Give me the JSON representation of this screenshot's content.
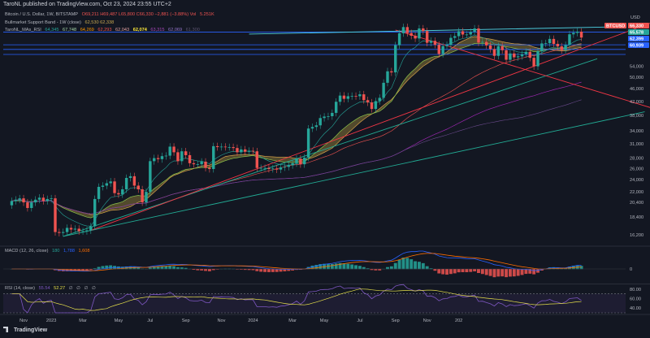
{
  "header": {
    "publisher_line": "TaroNL published on TradingView.com, Oct 23, 2024 23:55 UTC+2"
  },
  "legend": {
    "symbol_line": "Bitcoin / U.S. Dollar, 1W, BITSTAMP",
    "ohlc": "O69,211  H69,487  L65,800  C66,330  −2,881 (−3.88%)  Vol",
    "vol": "5.251K",
    "bmsb": "Bullmarket Support Band - 1W (close)",
    "bmsb_values": "62,530  62,338",
    "mas_label": "TaroNL_MAs_RSI",
    "mas_values": [
      "64,345",
      "67,748",
      "64,269",
      "62,293",
      "62,043",
      "62,074",
      "63,315",
      "62,069",
      "61,300"
    ],
    "macd_label": "MACD (12, 26, close)",
    "macd_values": [
      "180",
      "1,788",
      "1,608"
    ],
    "rsi_label": "RSI (14, close)",
    "rsi_values": [
      "55.54",
      "52.27",
      "∅",
      "∅",
      "∅",
      "∅"
    ]
  },
  "footer": {
    "brand": "TradingView"
  },
  "colors": {
    "background": "#131722",
    "up": "#26a69a",
    "down": "#ef5350",
    "band_fill": "#a08a3c",
    "macd_line": "#2962ff",
    "signal_line": "#ff6d00",
    "rsi_line": "#7e57c2",
    "rsi_ma": "#e6e04a",
    "support_line": "#2962ff",
    "trend_red": "#f23645",
    "trend_green": "#22ab94",
    "ma200": "#9c27b0"
  },
  "chart_data": [
    {
      "type": "candlestick",
      "title": "Bitcoin / U.S. Dollar, 1W, BITSTAMP",
      "yscale": "log",
      "ylim": [
        15000,
        80000
      ],
      "currency": "USD",
      "x_ticks": [
        "Nov",
        "2023",
        "Mar",
        "May",
        "Jul",
        "Sep",
        "Nov",
        "2024",
        "Mar",
        "May",
        "Jul",
        "Sep",
        "Nov",
        "202"
      ],
      "y_ticks": [
        16200,
        18400,
        20400,
        22000,
        24000,
        26000,
        28000,
        31000,
        34000,
        38000,
        42000,
        46000,
        50000,
        54000
      ],
      "last_price_label": "BTCUSD",
      "price_badges": [
        {
          "value": "66,330",
          "color": "#ef5350"
        },
        {
          "value": "65,578",
          "color": "#26a69a"
        },
        {
          "value": "62,399",
          "color": "#2962ff"
        },
        {
          "value": "60,939",
          "color": "#2962ff"
        }
      ],
      "horizontal_levels": [
        69000,
        63000,
        60939,
        58800
      ],
      "closes": [
        20600,
        20800,
        21000,
        20400,
        19600,
        20400,
        20800,
        21100,
        20600,
        20900,
        21000,
        16500,
        16400,
        16500,
        17000,
        16800,
        16900,
        16600,
        16600,
        16700,
        17200,
        20900,
        22800,
        23000,
        23400,
        23700,
        21800,
        21600,
        22400,
        24300,
        24600,
        23000,
        22400,
        20400,
        22000,
        27400,
        28000,
        27800,
        28400,
        28500,
        30400,
        29200,
        27400,
        29400,
        28600,
        27000,
        26800,
        26800,
        27300,
        26100,
        25900,
        30500,
        30300,
        30400,
        30300,
        30300,
        30100,
        29200,
        29800,
        29300,
        29500,
        29400,
        26100,
        26100,
        26100,
        25900,
        26000,
        25800,
        26200,
        26300,
        26600,
        27000,
        27900,
        26800,
        28100,
        34600,
        35000,
        35400,
        37300,
        37700,
        37800,
        38700,
        41900,
        43800,
        42800,
        43600,
        43700,
        43600,
        44200,
        42400,
        41700,
        39800,
        42100,
        43100,
        48000,
        52100,
        51700,
        62800,
        68400,
        71500,
        68500,
        67200,
        65900,
        70800,
        69500,
        63900,
        64800,
        63000,
        59000,
        62400,
        62900,
        66200,
        67000,
        69400,
        67800,
        67800,
        69100,
        70800,
        64000,
        64300,
        62700,
        61100,
        58200,
        62400,
        60600,
        56600,
        59200,
        57600,
        58000,
        58900,
        59900,
        57400,
        54000,
        60200,
        63600,
        63700,
        65700,
        63400,
        62300,
        60600,
        62900,
        67900,
        68600,
        69200,
        66330
      ],
      "series": [
        {
          "name": "Bullmarket Support Band",
          "values": [
            "62,530",
            "62,338"
          ]
        }
      ]
    },
    {
      "type": "line",
      "title": "MACD (12, 26, close)",
      "y_ticks": [
        0
      ],
      "series": [
        {
          "name": "MACD",
          "last": 1788
        },
        {
          "name": "Signal",
          "last": 1608
        },
        {
          "name": "Histogram",
          "last": 180
        }
      ]
    },
    {
      "type": "line",
      "title": "RSI (14, close)",
      "ylim": [
        30,
        90
      ],
      "y_ticks": [
        80,
        60,
        40
      ],
      "bands": [
        70,
        30
      ],
      "series": [
        {
          "name": "RSI",
          "last": 55.54
        },
        {
          "name": "RSI MA",
          "last": 52.27
        }
      ]
    }
  ]
}
